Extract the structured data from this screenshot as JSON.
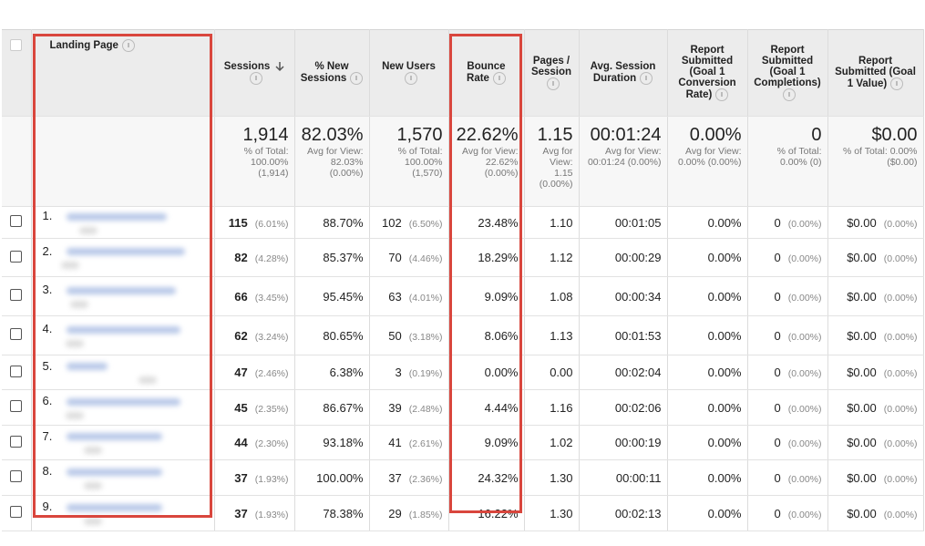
{
  "table": {
    "columns": [
      "Landing Page",
      "Sessions",
      "% New Sessions",
      "New Users",
      "Bounce Rate",
      "Pages / Session",
      "Avg. Session Duration",
      "Report Submitted (Goal 1 Conversion Rate)",
      "Report Submitted (Goal 1 Completions)",
      "Report Submitted (Goal 1 Value)"
    ],
    "summary": [
      {
        "value": "1,914",
        "note": "% of Total: 100.00% (1,914)"
      },
      {
        "value": "82.03%",
        "note": "Avg for View: 82.03% (0.00%)"
      },
      {
        "value": "1,570",
        "note": "% of Total: 100.00% (1,570)"
      },
      {
        "value": "22.62%",
        "note": "Avg for View: 22.62% (0.00%)"
      },
      {
        "value": "1.15",
        "note": "Avg for View: 1.15 (0.00%)"
      },
      {
        "value": "00:01:24",
        "note": "Avg for View: 00:01:24 (0.00%)"
      },
      {
        "value": "0.00%",
        "note": "Avg for View: 0.00% (0.00%)"
      },
      {
        "value": "0",
        "note": "% of Total: 0.00% (0)"
      },
      {
        "value": "$0.00",
        "note": "% of Total: 0.00% ($0.00)"
      }
    ],
    "rows": [
      [
        "1.",
        "115",
        "(6.01%)",
        "88.70%",
        "102",
        "(6.50%)",
        "23.48%",
        "1.10",
        "00:01:05",
        "0.00%",
        "0",
        "(0.00%)",
        "$0.00",
        "(0.00%)"
      ],
      [
        "2.",
        "82",
        "(4.28%)",
        "85.37%",
        "70",
        "(4.46%)",
        "18.29%",
        "1.12",
        "00:00:29",
        "0.00%",
        "0",
        "(0.00%)",
        "$0.00",
        "(0.00%)"
      ],
      [
        "3.",
        "66",
        "(3.45%)",
        "95.45%",
        "63",
        "(4.01%)",
        "9.09%",
        "1.08",
        "00:00:34",
        "0.00%",
        "0",
        "(0.00%)",
        "$0.00",
        "(0.00%)"
      ],
      [
        "4.",
        "62",
        "(3.24%)",
        "80.65%",
        "50",
        "(3.18%)",
        "8.06%",
        "1.13",
        "00:01:53",
        "0.00%",
        "0",
        "(0.00%)",
        "$0.00",
        "(0.00%)"
      ],
      [
        "5.",
        "47",
        "(2.46%)",
        "6.38%",
        "3",
        "(0.19%)",
        "0.00%",
        "0.00",
        "00:02:04",
        "0.00%",
        "0",
        "(0.00%)",
        "$0.00",
        "(0.00%)"
      ],
      [
        "6.",
        "45",
        "(2.35%)",
        "86.67%",
        "39",
        "(2.48%)",
        "4.44%",
        "1.16",
        "00:02:06",
        "0.00%",
        "0",
        "(0.00%)",
        "$0.00",
        "(0.00%)"
      ],
      [
        "7.",
        "44",
        "(2.30%)",
        "93.18%",
        "41",
        "(2.61%)",
        "9.09%",
        "1.02",
        "00:00:19",
        "0.00%",
        "0",
        "(0.00%)",
        "$0.00",
        "(0.00%)"
      ],
      [
        "8.",
        "37",
        "(1.93%)",
        "100.00%",
        "37",
        "(2.36%)",
        "24.32%",
        "1.30",
        "00:00:11",
        "0.00%",
        "0",
        "(0.00%)",
        "$0.00",
        "(0.00%)"
      ],
      [
        "9.",
        "37",
        "(1.93%)",
        "78.38%",
        "29",
        "(1.85%)",
        "16.22%",
        "1.30",
        "00:02:13",
        "0.00%",
        "0",
        "(0.00%)",
        "$0.00",
        "(0.00%)"
      ]
    ]
  }
}
